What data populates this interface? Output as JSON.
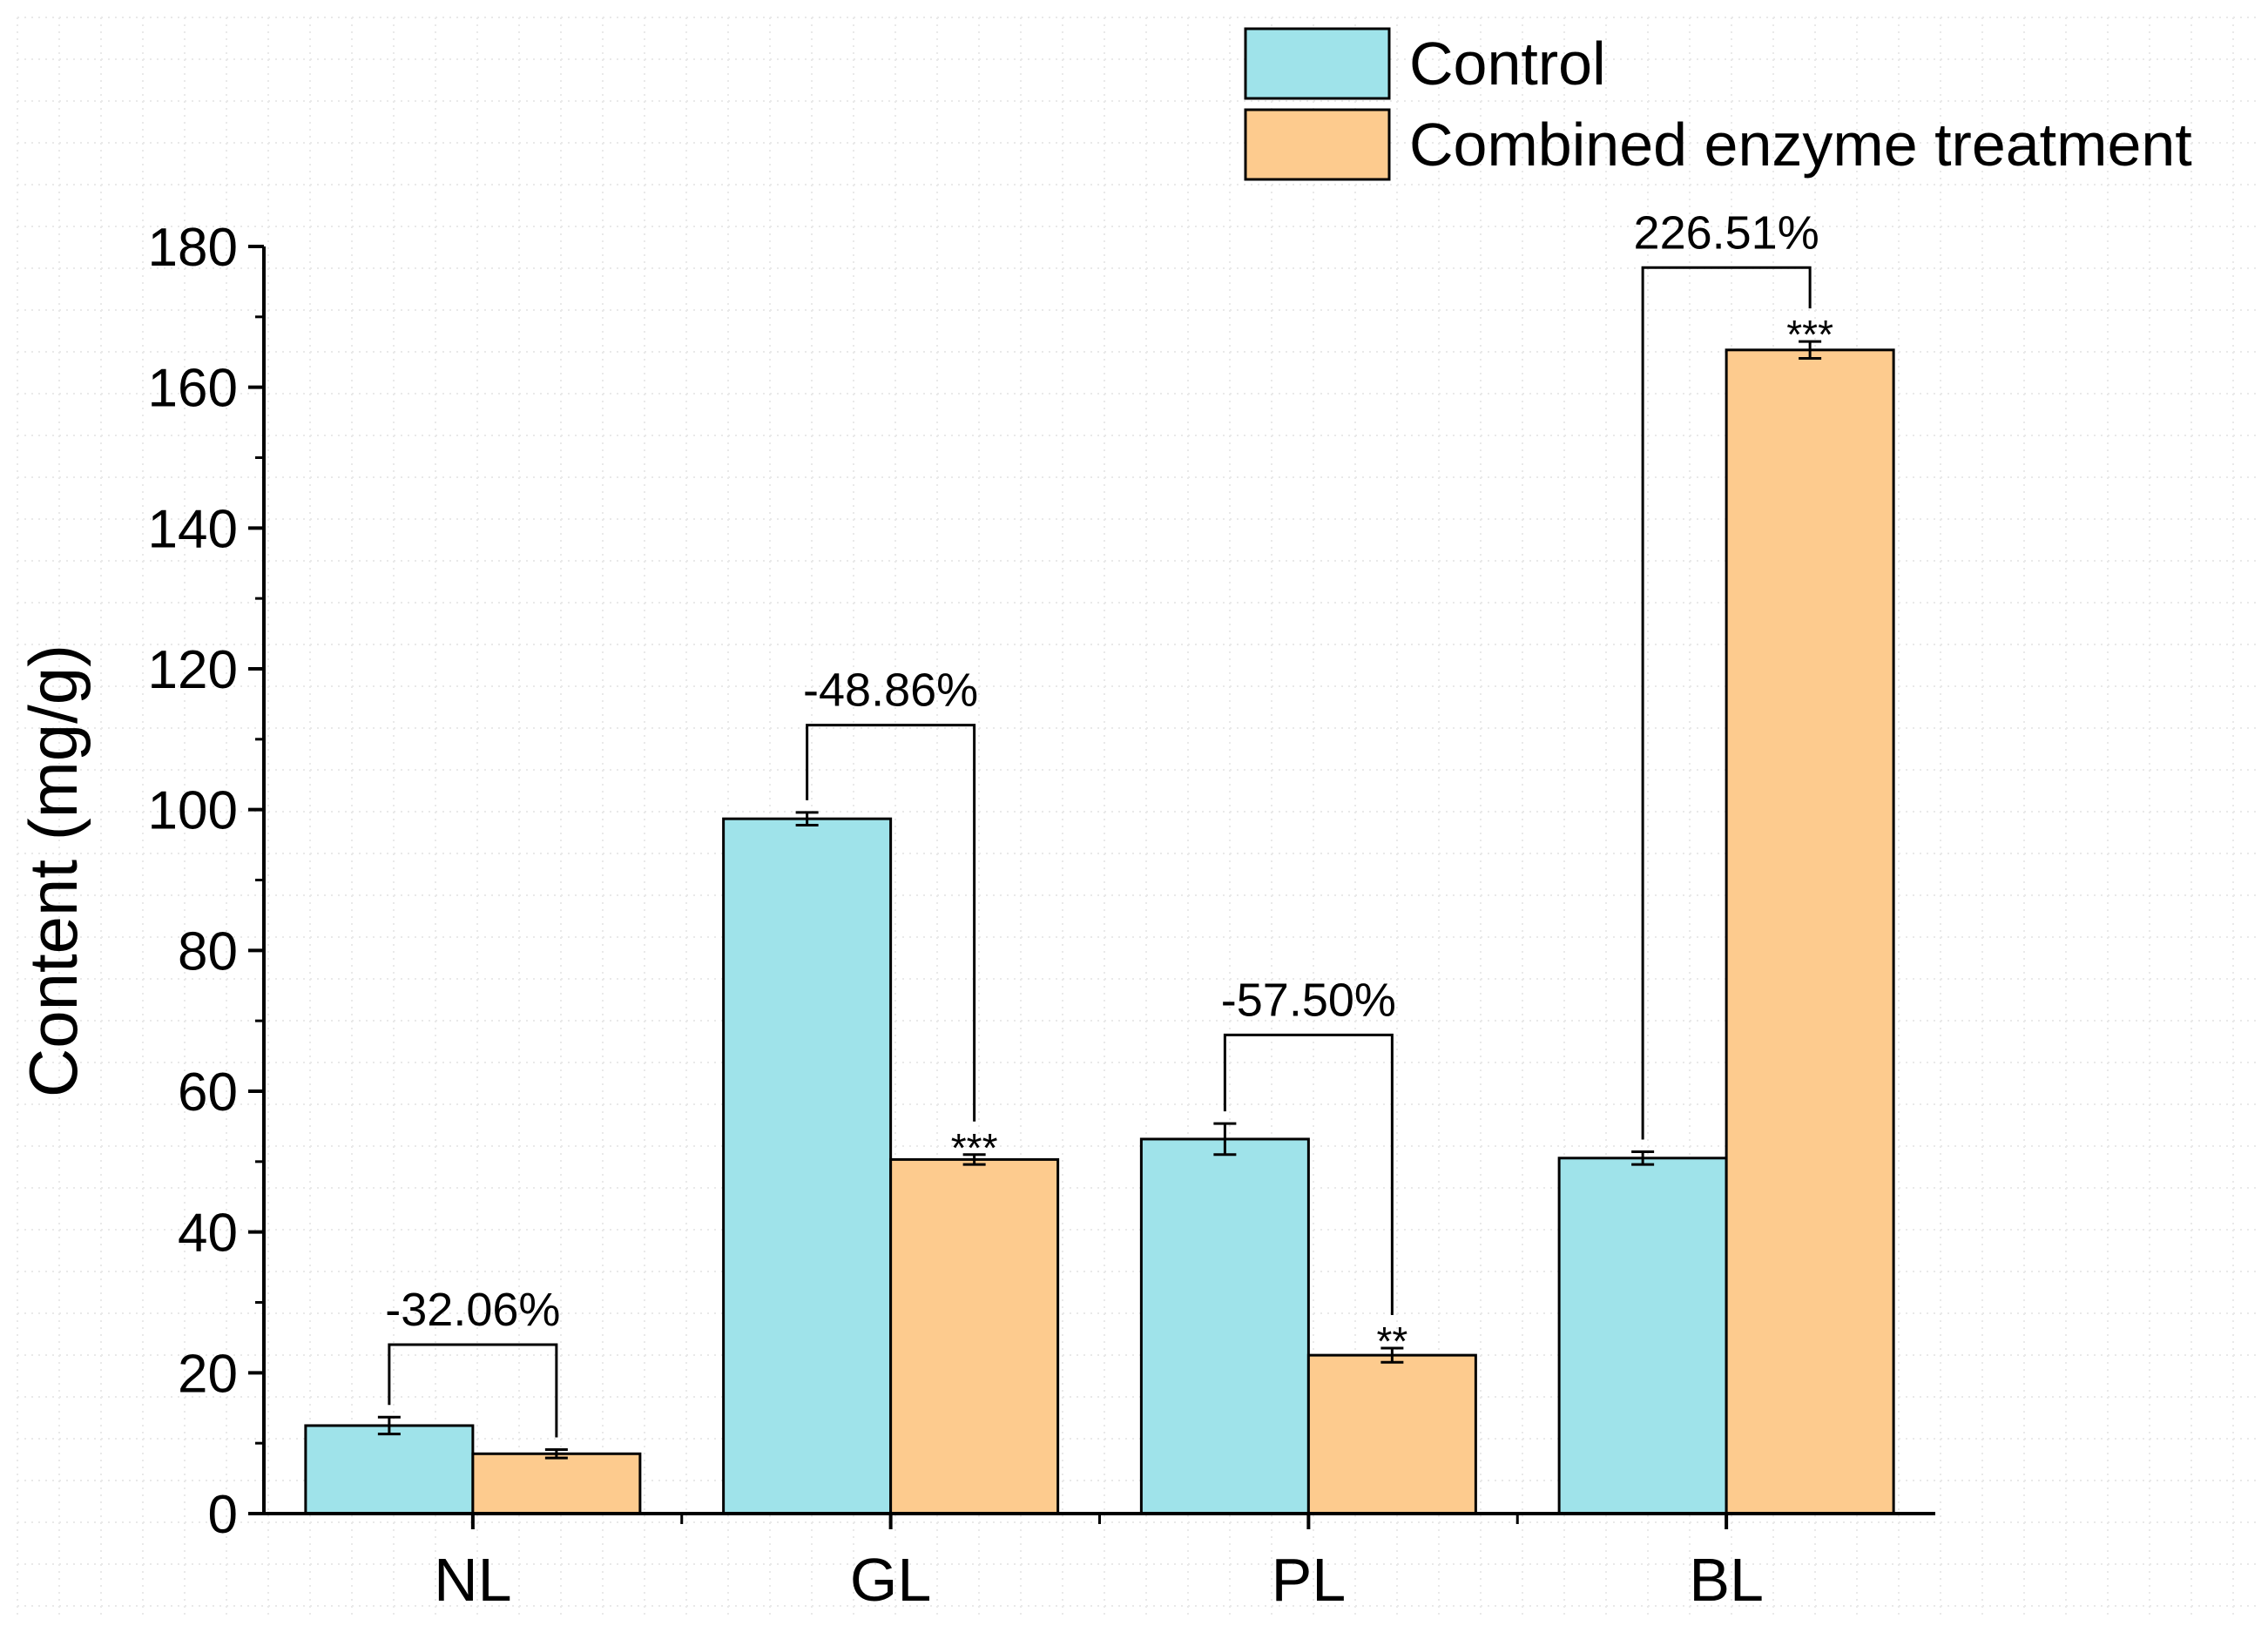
{
  "chart_data": {
    "type": "bar",
    "title": "",
    "xlabel": "",
    "ylabel": "Content (mg/g)",
    "ylim": [
      0,
      180
    ],
    "yticks": [
      0,
      20,
      40,
      60,
      80,
      100,
      120,
      140,
      160,
      180
    ],
    "categories": [
      "NL",
      "GL",
      "PL",
      "BL"
    ],
    "series": [
      {
        "name": "Control",
        "color": "#9fe3ea",
        "values": [
          12.5,
          98.7,
          53.2,
          50.5
        ],
        "errors": [
          1.2,
          0.9,
          2.2,
          0.9
        ]
      },
      {
        "name": "Combined enzyme treatment",
        "color": "#fdcb8e",
        "values": [
          8.5,
          50.3,
          22.5,
          165.3
        ],
        "errors": [
          0.6,
          0.7,
          1.0,
          1.2
        ]
      }
    ],
    "significance": [
      "",
      "***",
      "**",
      "***"
    ],
    "annotations": [
      "-32.06%",
      "-48.86%",
      "-57.50%",
      "226.51%"
    ],
    "legend_position": "top-right"
  }
}
